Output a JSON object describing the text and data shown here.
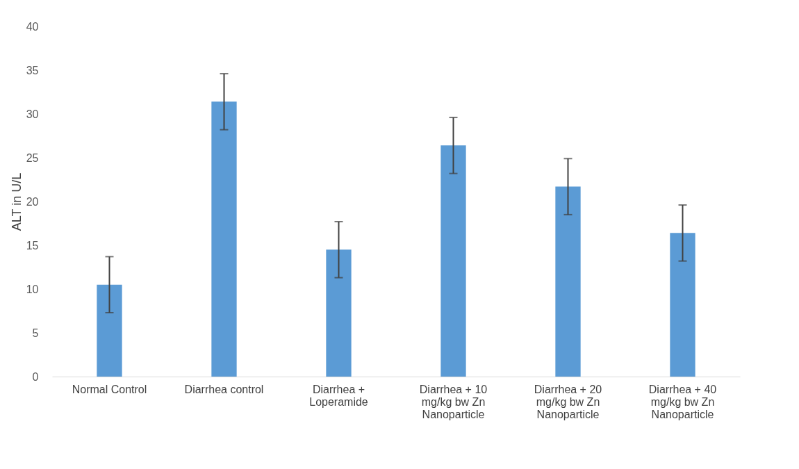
{
  "chart_data": {
    "type": "bar",
    "ylabel": "ALT in U/L",
    "categories": [
      "Normal Control",
      "Diarrhea control",
      "Diarrhea + Loperamide",
      "Diarrhea + 10 mg/kg bw Zn Nanoparticle",
      "Diarrhea + 20 mg/kg bw Zn Nanoparticle",
      "Diarrhea + 40 mg/kg bw Zn Nanoparticle"
    ],
    "values": [
      10.5,
      31.4,
      14.5,
      26.4,
      21.7,
      16.4
    ],
    "errors": [
      3.2,
      3.2,
      3.2,
      3.2,
      3.2,
      3.2
    ],
    "color": "#5b9bd5",
    "ylim": [
      0,
      40
    ],
    "yticks": [
      0,
      5,
      10,
      15,
      20,
      25,
      30,
      35,
      40
    ],
    "grid": false
  }
}
